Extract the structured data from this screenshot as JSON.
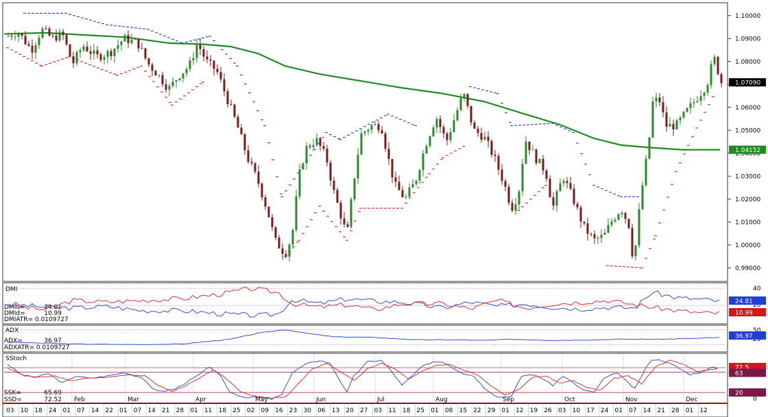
{
  "chart_data": {
    "type": "candlestick",
    "main": {
      "price_axis": {
        "range": [
          0.985,
          1.105
        ],
        "ticks": [
          "1.10000",
          "1.09000",
          "1.08000",
          "1.07000",
          "1.06000",
          "1.05000",
          "1.04000",
          "1.03000",
          "1.02000",
          "1.01000",
          "1.00000",
          "0.99000"
        ]
      },
      "last_price": "1.07090",
      "ma_last": "1.04152",
      "moving_average": [
        [
          0,
          1.092
        ],
        [
          60,
          1.0925
        ],
        [
          120,
          1.0915
        ],
        [
          180,
          1.0905
        ],
        [
          240,
          1.088
        ],
        [
          290,
          1.0875
        ],
        [
          330,
          1.0865
        ],
        [
          370,
          1.0835
        ],
        [
          410,
          1.078
        ],
        [
          460,
          1.0745
        ],
        [
          520,
          1.0715
        ],
        [
          580,
          1.0685
        ],
        [
          640,
          1.066
        ],
        [
          700,
          1.0625
        ],
        [
          760,
          1.057
        ],
        [
          810,
          1.0525
        ],
        [
          860,
          1.0465
        ],
        [
          900,
          1.0435
        ],
        [
          940,
          1.0425
        ],
        [
          990,
          1.0415
        ],
        [
          1044,
          1.04152
        ]
      ],
      "close_path": [
        [
          5,
          1.091
        ],
        [
          20,
          1.093
        ],
        [
          40,
          1.085
        ],
        [
          55,
          1.094
        ],
        [
          70,
          1.09
        ],
        [
          85,
          1.092
        ],
        [
          100,
          1.079
        ],
        [
          115,
          1.087
        ],
        [
          135,
          1.082
        ],
        [
          155,
          1.084
        ],
        [
          175,
          1.09
        ],
        [
          195,
          1.088
        ],
        [
          210,
          1.079
        ],
        [
          225,
          1.074
        ],
        [
          240,
          1.068
        ],
        [
          255,
          1.074
        ],
        [
          270,
          1.078
        ],
        [
          282,
          1.088
        ],
        [
          295,
          1.08
        ],
        [
          310,
          1.076
        ],
        [
          325,
          1.064
        ],
        [
          340,
          1.052
        ],
        [
          355,
          1.038
        ],
        [
          370,
          1.028
        ],
        [
          385,
          1.014
        ],
        [
          395,
          1.002
        ],
        [
          410,
          0.996
        ],
        [
          420,
          1.004
        ],
        [
          430,
          1.03
        ],
        [
          440,
          1.042
        ],
        [
          455,
          1.046
        ],
        [
          470,
          1.038
        ],
        [
          480,
          1.024
        ],
        [
          490,
          1.014
        ],
        [
          500,
          1.004
        ],
        [
          510,
          1.028
        ],
        [
          520,
          1.048
        ],
        [
          535,
          1.052
        ],
        [
          550,
          1.052
        ],
        [
          560,
          1.038
        ],
        [
          570,
          1.026
        ],
        [
          585,
          1.02
        ],
        [
          600,
          1.028
        ],
        [
          615,
          1.044
        ],
        [
          630,
          1.056
        ],
        [
          645,
          1.045
        ],
        [
          660,
          1.058
        ],
        [
          670,
          1.066
        ],
        [
          685,
          1.05
        ],
        [
          700,
          1.047
        ],
        [
          715,
          1.038
        ],
        [
          730,
          1.026
        ],
        [
          740,
          1.016
        ],
        [
          750,
          1.022
        ],
        [
          760,
          1.046
        ],
        [
          775,
          1.038
        ],
        [
          790,
          1.032
        ],
        [
          800,
          1.016
        ],
        [
          815,
          1.03
        ],
        [
          830,
          1.02
        ],
        [
          845,
          1.008
        ],
        [
          860,
          1.002
        ],
        [
          875,
          1.004
        ],
        [
          885,
          1.01
        ],
        [
          900,
          1.016
        ],
        [
          912,
          1.008
        ],
        [
          918,
          0.991
        ],
        [
          928,
          1.02
        ],
        [
          940,
          1.044
        ],
        [
          946,
          1.062
        ],
        [
          955,
          1.064
        ],
        [
          965,
          1.052
        ],
        [
          980,
          1.052
        ],
        [
          995,
          1.058
        ],
        [
          1010,
          1.064
        ],
        [
          1025,
          1.07
        ],
        [
          1035,
          1.082
        ],
        [
          1046,
          1.0709
        ]
      ],
      "sar_below": [
        [
          5,
          1.086
        ],
        [
          55,
          1.078
        ],
        [
          95,
          1.082
        ],
        [
          165,
          1.074
        ],
        [
          200,
          1.078
        ],
        [
          245,
          1.061
        ],
        [
          290,
          1.071
        ],
        [
          410,
          0.995
        ],
        [
          430,
          1.002
        ],
        [
          460,
          1.017
        ],
        [
          500,
          1.002
        ],
        [
          520,
          1.016
        ],
        [
          580,
          1.016
        ],
        [
          620,
          1.031
        ],
        [
          640,
          1.038
        ],
        [
          670,
          1.043
        ],
        [
          750,
          1.015
        ],
        [
          790,
          1.026
        ],
        [
          880,
          0.991
        ],
        [
          930,
          0.99
        ],
        [
          950,
          1.004
        ],
        [
          980,
          1.032
        ],
        [
          1010,
          1.051
        ],
        [
          1040,
          1.068
        ]
      ],
      "sar_above": [
        [
          30,
          1.101
        ],
        [
          90,
          1.101
        ],
        [
          150,
          1.096
        ],
        [
          210,
          1.094
        ],
        [
          260,
          1.088
        ],
        [
          300,
          1.091
        ],
        [
          340,
          1.078
        ],
        [
          380,
          1.052
        ],
        [
          405,
          1.021
        ],
        [
          470,
          1.049
        ],
        [
          490,
          1.046
        ],
        [
          560,
          1.057
        ],
        [
          600,
          1.052
        ],
        [
          680,
          1.069
        ],
        [
          720,
          1.066
        ],
        [
          740,
          1.052
        ],
        [
          800,
          1.053
        ],
        [
          830,
          1.049
        ],
        [
          860,
          1.026
        ],
        [
          900,
          1.021
        ],
        [
          925,
          1.021
        ]
      ]
    },
    "x_axis": {
      "day_labels": [
        "03",
        "10",
        "18",
        "24",
        "01",
        "07",
        "14",
        "22",
        "01",
        "07",
        "14",
        "21",
        "28",
        "01",
        "11",
        "18",
        "25",
        "02",
        "09",
        "16",
        "23",
        "30",
        "06",
        "13",
        "20",
        "27",
        "03",
        "11",
        "18",
        "25",
        "01",
        "08",
        "15",
        "22",
        "29",
        "01",
        "12",
        "19",
        "26",
        "03",
        "10",
        "17",
        "24",
        "01",
        "07",
        "14",
        "21",
        "28",
        "01",
        "12"
      ],
      "month_labels": [
        "Feb",
        "Mar",
        "Apr",
        "May",
        "Jun",
        "Jul",
        "Aug",
        "Sep",
        "Oct",
        "Nov",
        "Dec"
      ]
    },
    "dmi": {
      "title": "DMI",
      "axis_ticks": [
        "40",
        "20"
      ],
      "dmi_up_label": "DMIu=",
      "dmi_up_value": "24.81",
      "dmi_down_label": "DMId=",
      "dmi_down_value": "10.99",
      "atr_label": "DMIATR= 0.0109727",
      "dmi_up": [
        [
          5,
          22
        ],
        [
          60,
          18
        ],
        [
          100,
          17
        ],
        [
          150,
          19
        ],
        [
          200,
          14
        ],
        [
          260,
          14
        ],
        [
          320,
          10
        ],
        [
          370,
          8
        ],
        [
          400,
          10
        ],
        [
          420,
          27
        ],
        [
          460,
          22
        ],
        [
          500,
          28
        ],
        [
          540,
          25
        ],
        [
          580,
          24
        ],
        [
          640,
          17
        ],
        [
          680,
          24
        ],
        [
          720,
          19
        ],
        [
          760,
          22
        ],
        [
          800,
          18
        ],
        [
          840,
          16
        ],
        [
          880,
          18
        ],
        [
          920,
          17
        ],
        [
          945,
          36
        ],
        [
          980,
          29
        ],
        [
          1020,
          27
        ],
        [
          1044,
          24.81
        ]
      ],
      "dmi_down": [
        [
          5,
          20
        ],
        [
          60,
          15
        ],
        [
          100,
          26
        ],
        [
          150,
          24
        ],
        [
          200,
          26
        ],
        [
          260,
          28
        ],
        [
          320,
          34
        ],
        [
          360,
          40
        ],
        [
          400,
          35
        ],
        [
          420,
          22
        ],
        [
          460,
          18
        ],
        [
          500,
          21
        ],
        [
          540,
          15
        ],
        [
          580,
          22
        ],
        [
          640,
          22
        ],
        [
          680,
          16
        ],
        [
          720,
          26
        ],
        [
          760,
          17
        ],
        [
          800,
          22
        ],
        [
          840,
          24
        ],
        [
          880,
          26
        ],
        [
          920,
          21
        ],
        [
          945,
          18
        ],
        [
          980,
          14
        ],
        [
          1020,
          11
        ],
        [
          1044,
          10.99
        ]
      ]
    },
    "adx": {
      "title": "ADX",
      "axis_ticks": [
        "50",
        "25"
      ],
      "adx_label": "ADX=",
      "adx_value": "36.97",
      "atr_label": "ADXATR= 0.0109727",
      "adx": [
        [
          5,
          29
        ],
        [
          100,
          26
        ],
        [
          200,
          25
        ],
        [
          260,
          26
        ],
        [
          330,
          34
        ],
        [
          370,
          44
        ],
        [
          410,
          50
        ],
        [
          440,
          44
        ],
        [
          480,
          38
        ],
        [
          540,
          37
        ],
        [
          600,
          33
        ],
        [
          660,
          33
        ],
        [
          700,
          32
        ],
        [
          740,
          34
        ],
        [
          800,
          32
        ],
        [
          860,
          33
        ],
        [
          900,
          34
        ],
        [
          960,
          34
        ],
        [
          1000,
          35
        ],
        [
          1044,
          36.97
        ]
      ]
    },
    "sstoch": {
      "title": "SStoch",
      "axis_ticks": [
        "50",
        "0"
      ],
      "upper_level": "72.5",
      "mid_value": "63",
      "lower_level": "20",
      "ssk_label": "SSK=",
      "ssk_value": "65.69",
      "ssd_label": "SSD=",
      "ssd_value": "72.52",
      "ssk": [
        [
          5,
          80
        ],
        [
          25,
          58
        ],
        [
          45,
          52
        ],
        [
          65,
          60
        ],
        [
          85,
          40
        ],
        [
          105,
          55
        ],
        [
          125,
          50
        ],
        [
          150,
          55
        ],
        [
          175,
          62
        ],
        [
          200,
          52
        ],
        [
          215,
          30
        ],
        [
          230,
          22
        ],
        [
          250,
          28
        ],
        [
          270,
          45
        ],
        [
          285,
          58
        ],
        [
          300,
          75
        ],
        [
          315,
          55
        ],
        [
          330,
          20
        ],
        [
          350,
          10
        ],
        [
          370,
          10
        ],
        [
          390,
          6
        ],
        [
          405,
          15
        ],
        [
          420,
          62
        ],
        [
          440,
          80
        ],
        [
          460,
          88
        ],
        [
          475,
          82
        ],
        [
          490,
          45
        ],
        [
          500,
          20
        ],
        [
          510,
          55
        ],
        [
          530,
          85
        ],
        [
          550,
          88
        ],
        [
          565,
          65
        ],
        [
          580,
          35
        ],
        [
          595,
          55
        ],
        [
          610,
          75
        ],
        [
          625,
          85
        ],
        [
          640,
          85
        ],
        [
          655,
          72
        ],
        [
          670,
          60
        ],
        [
          685,
          55
        ],
        [
          700,
          30
        ],
        [
          720,
          10
        ],
        [
          740,
          12
        ],
        [
          755,
          55
        ],
        [
          770,
          58
        ],
        [
          785,
          50
        ],
        [
          800,
          35
        ],
        [
          815,
          55
        ],
        [
          830,
          40
        ],
        [
          845,
          25
        ],
        [
          860,
          20
        ],
        [
          875,
          50
        ],
        [
          895,
          62
        ],
        [
          910,
          40
        ],
        [
          920,
          28
        ],
        [
          935,
          70
        ],
        [
          945,
          90
        ],
        [
          960,
          88
        ],
        [
          980,
          75
        ],
        [
          1000,
          58
        ],
        [
          1020,
          64
        ],
        [
          1035,
          75
        ],
        [
          1044,
          65.69
        ]
      ],
      "ssd": [
        [
          5,
          72
        ],
        [
          30,
          55
        ],
        [
          55,
          52
        ],
        [
          75,
          55
        ],
        [
          95,
          45
        ],
        [
          120,
          50
        ],
        [
          150,
          52
        ],
        [
          180,
          58
        ],
        [
          205,
          55
        ],
        [
          225,
          35
        ],
        [
          245,
          22
        ],
        [
          265,
          35
        ],
        [
          285,
          50
        ],
        [
          305,
          68
        ],
        [
          325,
          48
        ],
        [
          345,
          22
        ],
        [
          365,
          12
        ],
        [
          390,
          8
        ],
        [
          410,
          10
        ],
        [
          430,
          40
        ],
        [
          450,
          70
        ],
        [
          470,
          82
        ],
        [
          490,
          65
        ],
        [
          510,
          45
        ],
        [
          530,
          70
        ],
        [
          550,
          82
        ],
        [
          570,
          70
        ],
        [
          590,
          48
        ],
        [
          610,
          65
        ],
        [
          630,
          78
        ],
        [
          650,
          80
        ],
        [
          670,
          68
        ],
        [
          690,
          58
        ],
        [
          710,
          35
        ],
        [
          730,
          15
        ],
        [
          750,
          25
        ],
        [
          770,
          52
        ],
        [
          790,
          55
        ],
        [
          810,
          40
        ],
        [
          830,
          45
        ],
        [
          850,
          30
        ],
        [
          870,
          25
        ],
        [
          890,
          50
        ],
        [
          910,
          55
        ],
        [
          930,
          38
        ],
        [
          950,
          75
        ],
        [
          970,
          88
        ],
        [
          990,
          80
        ],
        [
          1010,
          65
        ],
        [
          1030,
          68
        ],
        [
          1044,
          72.52
        ]
      ]
    }
  },
  "colors": {
    "up_candle": "#2a8a2a",
    "down_candle": "#7a1a1a",
    "ma": "#1f8a1f",
    "sar_below": "#e03030",
    "sar_above": "#3050d0",
    "dmi_up": "#3050d0",
    "dmi_down": "#e03030",
    "adx": "#3050d0",
    "ssk": "#3050d0",
    "ssd": "#e03030",
    "badge_price": "#000000",
    "badge_ma": "#1f8a1f",
    "badge_blue": "#1f3fd8",
    "badge_red": "#d01818",
    "badge_maroon": "#7a1848"
  }
}
